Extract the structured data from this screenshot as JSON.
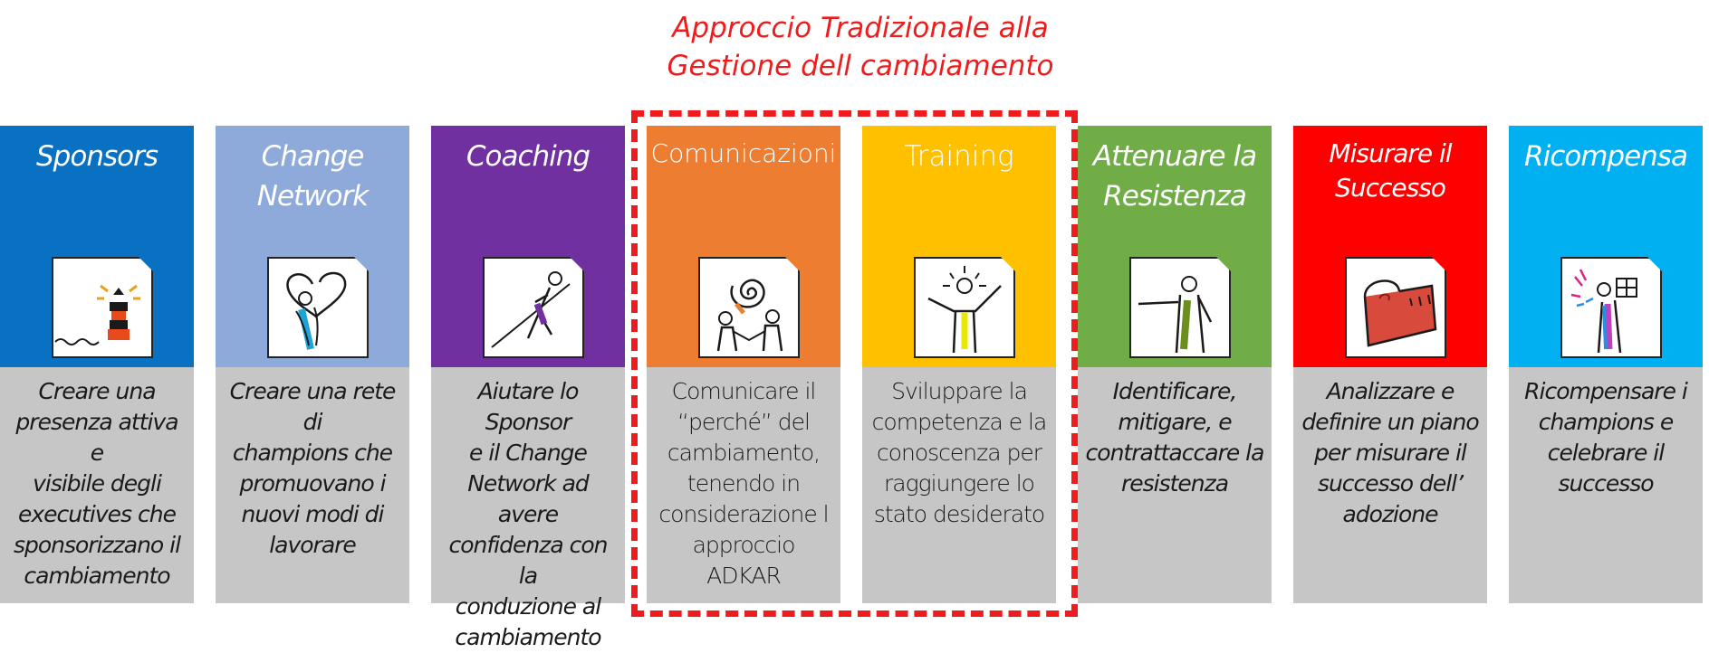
{
  "header": {
    "title_line1": "Approccio Tradizionale alla",
    "title_line2": "Gestione dell cambiamento"
  },
  "columns": [
    {
      "title": [
        "Sponsors"
      ],
      "color": "#0871c2",
      "icon": "lighthouse-icon",
      "italic": true,
      "description": [
        "Creare una",
        "presenza attiva e",
        "visibile degli",
        "executives che",
        "sponsorizzano il",
        "cambiamento"
      ]
    },
    {
      "title": [
        "Change",
        "Network"
      ],
      "color": "#8eaadb",
      "icon": "heart-person-icon",
      "italic": true,
      "description": [
        "Creare una rete di",
        "champions che",
        "promuovano i",
        "nuovi modi di",
        "lavorare"
      ]
    },
    {
      "title": [
        "Coaching"
      ],
      "color": "#7030a0",
      "icon": "pulling-rope-icon",
      "italic": true,
      "description": [
        "Aiutare lo Sponsor",
        "e il Change",
        "Network ad avere",
        "confidenza con la",
        "conduzione al",
        "cambiamento"
      ]
    },
    {
      "title": [
        "Comunicazioni"
      ],
      "color": "#ed7d31",
      "icon": "speech-spiral-icon",
      "italic": false,
      "description": [
        "Comunicare il",
        "“perché” del",
        "cambiamento,",
        "tenendo in",
        "considerazione l",
        "approccio ADKAR"
      ]
    },
    {
      "title": [
        "Training"
      ],
      "color": "#ffc000",
      "icon": "bright-idea-person-icon",
      "italic": false,
      "description": [
        "Sviluppare la",
        "competenza e la",
        "conoscenza per",
        "raggiungere lo",
        "stato desiderato"
      ]
    },
    {
      "title": [
        "Attenuare la",
        "Resistenza"
      ],
      "color": "#70ad47",
      "icon": "stop-hand-person-icon",
      "italic": true,
      "description": [
        "Identificare,",
        "mitigare, e",
        "contrattaccare la",
        "resistenza"
      ]
    },
    {
      "title": [
        "Misurare il",
        "Successo"
      ],
      "color": "#ff0000",
      "icon": "measuring-tape-icon",
      "italic": true,
      "description": [
        "Analizzare e",
        "definire un piano",
        "per misurare il",
        "successo dell’",
        "adozione"
      ]
    },
    {
      "title": [
        "Ricompensa"
      ],
      "color": "#00b0f0",
      "icon": "gift-celebration-icon",
      "italic": true,
      "description": [
        "Ricompensare i",
        "champions e",
        "celebrare il",
        "successo"
      ]
    }
  ],
  "colors": {
    "frame": "#ee1c1c",
    "description_bg": "#c6c6c6"
  }
}
